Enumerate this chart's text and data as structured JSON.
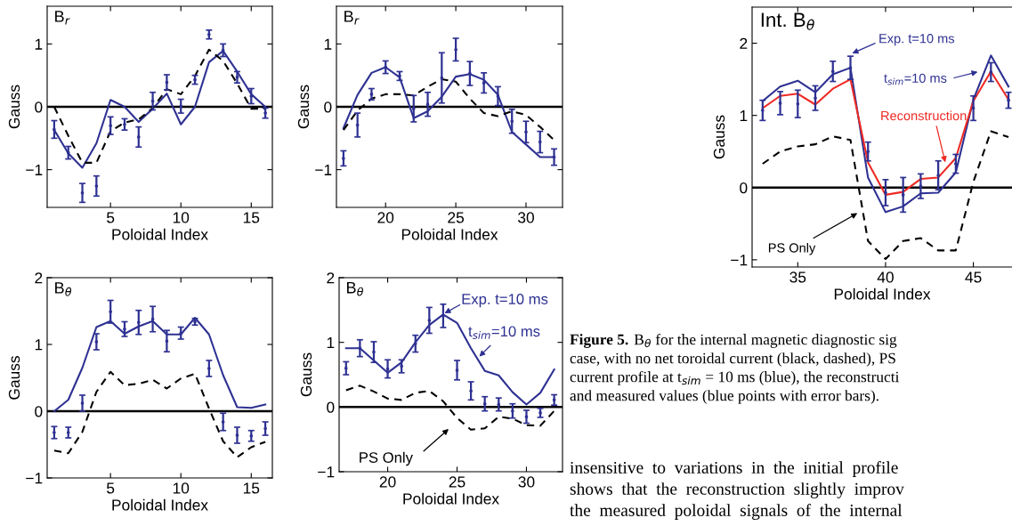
{
  "chart_data": [
    {
      "type": "line",
      "title": "B$_{r}$",
      "xlabel": "Poloidal Index",
      "ylabel": "Gauss",
      "x": [
        1,
        2,
        3,
        4,
        5,
        6,
        7,
        8,
        9,
        10,
        11,
        12,
        13,
        14,
        15,
        16
      ],
      "xlim": [
        0.5,
        16.5
      ],
      "xticks": [
        5,
        10,
        15
      ],
      "ylim": [
        -1.6,
        1.6
      ],
      "yticks": [
        -1,
        0,
        1
      ],
      "grid": false,
      "legend": false,
      "ref_lines": [
        {
          "axis": "y",
          "value": 0,
          "color": "#000000",
          "line_style": "solid"
        }
      ],
      "series": [
        {
          "type": "scatter",
          "color": "#2e3192",
          "marker": "circle",
          "values": [
            -0.36,
            -0.73,
            -1.37,
            -1.26,
            -0.3,
            -0.28,
            -0.48,
            0.09,
            0.39,
            0.01,
            0.43,
            1.15,
            0.9,
            0.47,
            0.17,
            -0.1
          ],
          "errors": [
            0.14,
            0.1,
            0.15,
            0.16,
            0.14,
            0.09,
            0.16,
            0.14,
            0.12,
            0.11,
            0.07,
            0.07,
            0.1,
            0.09,
            0.12,
            0.08
          ]
        },
        {
          "type": "line",
          "color": "#2e3192",
          "line_style": "solid",
          "values": [
            -0.37,
            -0.74,
            -0.97,
            -0.58,
            0.11,
            0.0,
            -0.24,
            -0.03,
            0.21,
            -0.28,
            0.0,
            0.71,
            0.89,
            0.56,
            0.2,
            0.0
          ]
        },
        {
          "type": "line",
          "color": "#000000",
          "line_style": "dashed",
          "values": [
            0.0,
            -0.46,
            -0.89,
            -0.89,
            -0.39,
            -0.25,
            -0.2,
            -0.02,
            0.28,
            0.2,
            0.49,
            0.91,
            0.73,
            0.37,
            -0.03,
            -0.03
          ]
        }
      ]
    },
    {
      "type": "line",
      "title": "B$_{r}$",
      "xlabel": "Poloidal Index",
      "ylabel": "Gauss",
      "x": [
        17,
        18,
        19,
        20,
        21,
        22,
        23,
        24,
        25,
        26,
        27,
        28,
        29,
        30,
        31,
        32
      ],
      "xlim": [
        16.5,
        32.6
      ],
      "xticks": [
        20,
        25,
        30
      ],
      "ylim": [
        -1.6,
        1.6
      ],
      "yticks": [
        -1,
        0,
        1
      ],
      "grid": false,
      "legend": false,
      "ref_lines": [
        {
          "axis": "y",
          "value": 0,
          "color": "#000000",
          "line_style": "solid"
        }
      ],
      "series": [
        {
          "type": "scatter",
          "color": "#2e3192",
          "marker": "circle",
          "values": [
            -0.82,
            -0.29,
            0.2,
            0.63,
            0.49,
            -0.03,
            0.04,
            0.46,
            0.91,
            0.53,
            0.38,
            0.17,
            -0.23,
            -0.4,
            -0.56,
            -0.8
          ],
          "errors": [
            0.12,
            0.19,
            0.09,
            0.1,
            0.07,
            0.21,
            0.19,
            0.4,
            0.18,
            0.19,
            0.16,
            0.15,
            0.19,
            0.17,
            0.17,
            0.13
          ]
        },
        {
          "type": "line",
          "color": "#2e3192",
          "line_style": "solid",
          "values": [
            -0.34,
            0.19,
            0.54,
            0.63,
            0.47,
            -0.18,
            -0.07,
            0.16,
            0.48,
            0.52,
            0.43,
            0.19,
            -0.4,
            -0.6,
            -0.8,
            -0.8
          ]
        },
        {
          "type": "line",
          "color": "#000000",
          "line_style": "dashed",
          "values": [
            -0.37,
            -0.06,
            0.13,
            0.2,
            0.2,
            0.18,
            0.32,
            0.44,
            0.4,
            0.13,
            -0.1,
            -0.15,
            -0.07,
            -0.13,
            -0.32,
            -0.53
          ]
        }
      ]
    },
    {
      "type": "line",
      "title": "B$_{θ}$",
      "xlabel": "Poloidal Index",
      "ylabel": "Gauss",
      "x": [
        1,
        2,
        3,
        4,
        5,
        6,
        7,
        8,
        9,
        10,
        11,
        12,
        13,
        14,
        15,
        16
      ],
      "xlim": [
        0.5,
        16.5
      ],
      "xticks": [
        5,
        10,
        15
      ],
      "ylim": [
        -1,
        2
      ],
      "yticks": [
        -1,
        0,
        1,
        2
      ],
      "grid": false,
      "legend": false,
      "ref_lines": [
        {
          "axis": "y",
          "value": 0,
          "color": "#000000",
          "line_style": "solid"
        }
      ],
      "series": [
        {
          "type": "scatter",
          "color": "#2e3192",
          "marker": "circle",
          "values": [
            -0.32,
            -0.32,
            0.12,
            1.04,
            1.49,
            1.23,
            1.33,
            1.38,
            1.05,
            1.17,
            1.34,
            0.64,
            -0.16,
            -0.36,
            -0.37,
            -0.26
          ],
          "errors": [
            0.09,
            0.08,
            0.12,
            0.12,
            0.17,
            0.11,
            0.18,
            0.19,
            0.16,
            0.09,
            0.05,
            0.12,
            0.13,
            0.12,
            0.08,
            0.1
          ]
        },
        {
          "type": "line",
          "color": "#2e3192",
          "line_style": "solid",
          "values": [
            0.0,
            0.17,
            0.65,
            1.26,
            1.35,
            1.16,
            1.27,
            1.35,
            1.15,
            1.15,
            1.4,
            1.15,
            0.54,
            0.06,
            0.05,
            0.1
          ]
        },
        {
          "type": "line",
          "color": "#000000",
          "line_style": "dashed",
          "values": [
            -0.59,
            -0.63,
            -0.31,
            0.29,
            0.59,
            0.39,
            0.41,
            0.47,
            0.34,
            0.49,
            0.56,
            0.04,
            -0.45,
            -0.69,
            -0.54,
            -0.46
          ]
        }
      ]
    },
    {
      "type": "line",
      "title": "B$_{θ}$",
      "xlabel": "Poloidal Index",
      "ylabel": "Gauss",
      "x": [
        17,
        18,
        19,
        20,
        21,
        22,
        23,
        24,
        25,
        26,
        27,
        28,
        29,
        30,
        31,
        32
      ],
      "xlim": [
        16.5,
        32.6
      ],
      "xticks": [
        20,
        25,
        30
      ],
      "ylim": [
        -1,
        2
      ],
      "yticks": [
        -1,
        0,
        1,
        2
      ],
      "grid": false,
      "legend": false,
      "ref_lines": [
        {
          "axis": "y",
          "value": 0,
          "color": "#000000",
          "line_style": "solid"
        }
      ],
      "annotations": [
        {
          "text": "Exp. t=10 ms",
          "x": 24.1,
          "y": 1.45
        },
        {
          "text": "t$_{sim}$=10 ms",
          "x": 26.6,
          "y": 0.78
        },
        "PS Only"
      ],
      "series": [
        {
          "type": "scatter",
          "color": "#2e3192",
          "marker": "circle",
          "values": [
            0.6,
            0.91,
            0.85,
            0.59,
            0.63,
            0.98,
            1.34,
            1.41,
            0.57,
            0.25,
            0.05,
            0.04,
            -0.06,
            -0.15,
            -0.09,
            0.11
          ],
          "errors": [
            0.1,
            0.13,
            0.16,
            0.14,
            0.1,
            0.13,
            0.2,
            0.18,
            0.15,
            0.14,
            0.11,
            0.1,
            0.11,
            0.1,
            0.07,
            0.08
          ]
        },
        {
          "type": "line",
          "color": "#2e3192",
          "line_style": "solid",
          "values": [
            0.91,
            0.91,
            0.72,
            0.53,
            0.69,
            1.0,
            1.27,
            1.43,
            1.3,
            0.91,
            0.56,
            0.49,
            0.23,
            0.04,
            0.22,
            0.58
          ]
        },
        {
          "type": "line",
          "color": "#000000",
          "line_style": "dashed",
          "values": [
            0.26,
            0.33,
            0.24,
            0.13,
            0.11,
            0.22,
            0.25,
            0.09,
            -0.17,
            -0.35,
            -0.33,
            -0.15,
            -0.18,
            -0.28,
            -0.29,
            -0.06
          ]
        }
      ]
    },
    {
      "type": "line",
      "title": "Int. B$_{θ}$",
      "xlabel": "Poloidal Index",
      "ylabel": "Gauss",
      "x": [
        33,
        34,
        35,
        36,
        37,
        38,
        39,
        40,
        41,
        42,
        43,
        44,
        45,
        46,
        47
      ],
      "xlim": [
        32.4,
        47.2
      ],
      "xticks": [
        35,
        40,
        45
      ],
      "ylim": [
        -1.1,
        2.5
      ],
      "yticks": [
        -1,
        0,
        1,
        2
      ],
      "grid": false,
      "legend": false,
      "ref_lines": [
        {
          "axis": "y",
          "value": 0,
          "color": "#000000",
          "line_style": "solid"
        }
      ],
      "annotations": [
        {
          "text": "Exp. t=10 ms",
          "x": 38.1,
          "y": 1.86
        },
        "t$_{sim}$=10 ms",
        {
          "text": "Reconstruction",
          "x": 43.4,
          "y": 0.35
        },
        "PS Only"
      ],
      "series": [
        {
          "type": "scatter",
          "color": "#2e3192",
          "marker": "circle",
          "values": [
            1.07,
            1.17,
            1.16,
            1.24,
            1.61,
            1.66,
            0.5,
            -0.07,
            -0.1,
            0.02,
            0.17,
            0.33,
            1.1,
            1.6,
            1.21
          ],
          "errors": [
            0.14,
            0.16,
            0.19,
            0.17,
            0.14,
            0.16,
            0.13,
            0.18,
            0.24,
            0.17,
            0.2,
            0.13,
            0.17,
            0.13,
            0.11
          ]
        },
        {
          "type": "line",
          "color": "#2e3192",
          "line_style": "solid",
          "values": [
            1.2,
            1.4,
            1.48,
            1.32,
            1.57,
            1.66,
            0.14,
            -0.34,
            -0.26,
            -0.08,
            -0.07,
            0.21,
            1.22,
            1.83,
            1.4
          ]
        },
        {
          "type": "line",
          "color": "#ee2a24",
          "line_style": "solid",
          "values": [
            1.1,
            1.27,
            1.3,
            1.15,
            1.37,
            1.5,
            0.35,
            -0.1,
            -0.06,
            0.12,
            0.14,
            0.41,
            1.2,
            1.61,
            1.22
          ]
        },
        {
          "type": "line",
          "color": "#000000",
          "line_style": "dashed",
          "values": [
            0.33,
            0.5,
            0.57,
            0.6,
            0.71,
            0.66,
            -0.74,
            -0.99,
            -0.74,
            -0.7,
            -0.87,
            -0.87,
            0.08,
            0.78,
            0.7
          ]
        }
      ]
    },
    {
      "type": "other",
      "annotations": [
        "Figure 5.",
        "B$_{θ}$ for the internal magnetic diagnostic sig",
        "case, with no net toroidal current (black, dashed), PS",
        "current profile at t$_{sim}$ = 10 ms (blue), the reconstructi",
        "and measured values (blue points with error bars).",
        "insensitive  to  variations  in  the  initial  profile",
        "shows  that  the  reconstruction  slightly  improv",
        "the  measured  poloidal  signals  of  the  internal"
      ]
    }
  ]
}
